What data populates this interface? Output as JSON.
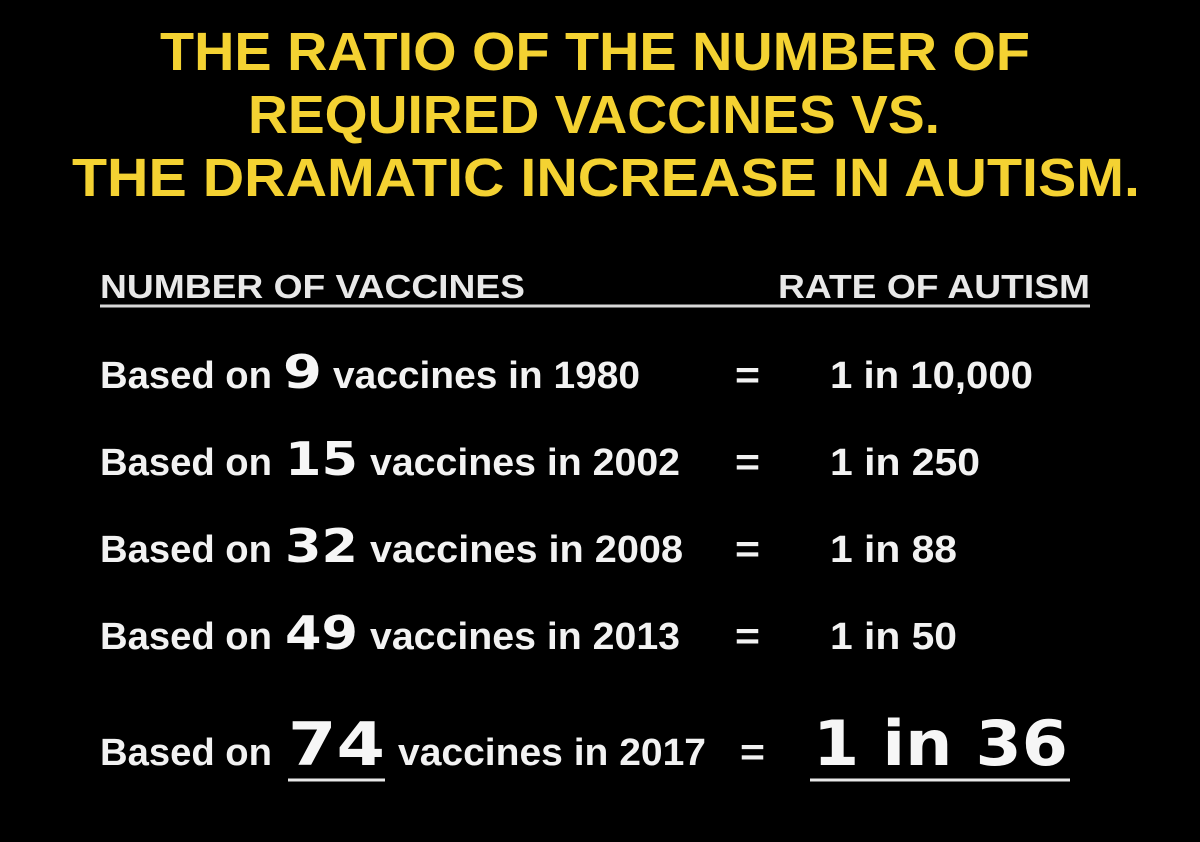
{
  "title": {
    "lines": [
      "THE RATIO OF THE NUMBER OF",
      "REQUIRED VACCINES VS.",
      "THE DRAMATIC INCREASE IN AUTISM."
    ]
  },
  "table": {
    "headers": [
      "NUMBER OF VACCINES",
      "RATE OF AUTISM"
    ],
    "rows": [
      {
        "prefix": "Based on",
        "count": "9",
        "suffix": "vaccines in 1980",
        "equals": "=",
        "rate": "1 in 10,000"
      },
      {
        "prefix": "Based on",
        "count": "15",
        "suffix": "vaccines in 2002",
        "equals": "=",
        "rate": "1 in 250"
      },
      {
        "prefix": "Based on",
        "count": "32",
        "suffix": "vaccines in 2008",
        "equals": "=",
        "rate": "1 in 88"
      },
      {
        "prefix": "Based on",
        "count": "49",
        "suffix": "vaccines in 2013",
        "equals": "=",
        "rate": "1 in 50"
      },
      {
        "prefix": "Based on",
        "count": "74",
        "suffix": "vaccines in 2017",
        "equals": "=",
        "rate": "1 in 36"
      }
    ]
  }
}
